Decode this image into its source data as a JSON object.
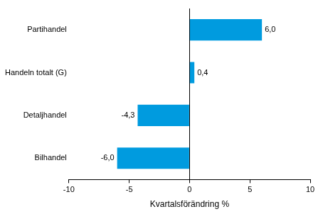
{
  "chart_data": {
    "type": "bar",
    "orientation": "horizontal",
    "categories": [
      "Partihandel",
      "Handeln totalt (G)",
      "Detaljhandel",
      "Bilhandel"
    ],
    "values": [
      6.0,
      0.4,
      -4.3,
      -6.0
    ],
    "value_labels": [
      "6,0",
      "0,4",
      "-4,3",
      "-6,0"
    ],
    "data_labels": true,
    "color": "#009bdf",
    "x_label": "Kvartalsförändring %",
    "xlim": [
      -10,
      10
    ],
    "xticks": [
      -10,
      -5,
      0,
      5,
      10
    ],
    "grid": false
  }
}
